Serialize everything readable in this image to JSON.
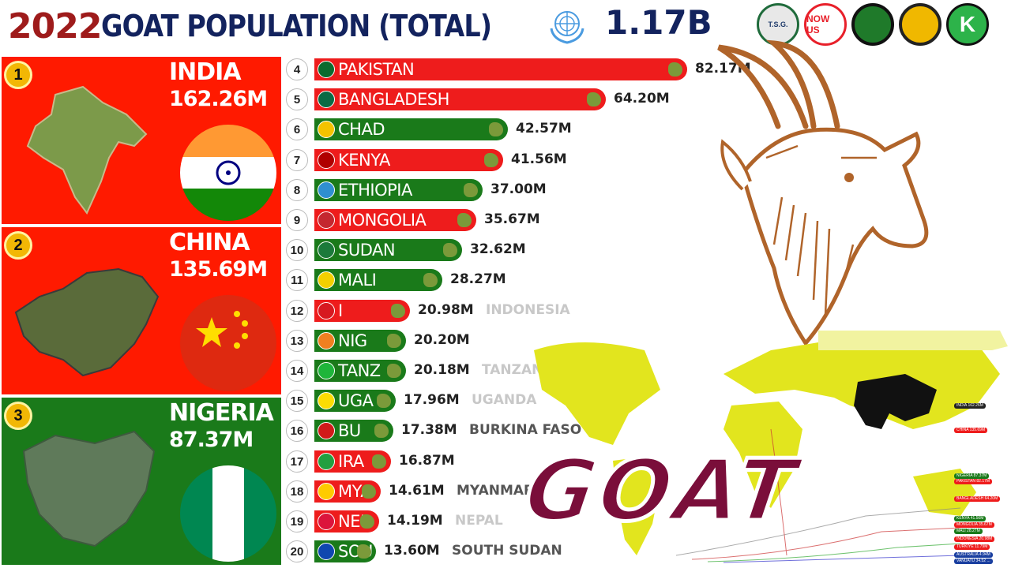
{
  "header": {
    "year": "2022",
    "title": "GOAT POPULATION (TOTAL)",
    "total": "1.17B"
  },
  "logos": [
    {
      "icon": "tsg-logo",
      "label": "T.S.G."
    },
    {
      "icon": "now-us-logo",
      "label": "NOW US"
    },
    {
      "icon": "green-swirl-logo",
      "label": ""
    },
    {
      "icon": "seal-logo",
      "label": ""
    },
    {
      "icon": "k-logo",
      "label": "K"
    }
  ],
  "top3": [
    {
      "rank": "1",
      "name": "INDIA",
      "value": "162.26M",
      "bg": "#ff1a00",
      "flag": "india"
    },
    {
      "rank": "2",
      "name": "CHINA",
      "value": "135.69M",
      "bg": "#ff1a00",
      "flag": "china"
    },
    {
      "rank": "3",
      "name": "NIGERIA",
      "value": "87.37M",
      "bg": "#1a7a1a",
      "flag": "nigeria"
    }
  ],
  "chart_data": {
    "type": "bar",
    "title": "GOAT POPULATION (TOTAL)",
    "xlabel": "",
    "ylabel": "",
    "unit": "M",
    "categories": [
      "PAKISTAN",
      "BANGLADESH",
      "CHAD",
      "KENYA",
      "ETHIOPIA",
      "MONGOLIA",
      "SUDAN",
      "MALI",
      "INDONESIA",
      "NIGER",
      "TANZANIA",
      "UGANDA",
      "BURKINA FASO",
      "IRAN",
      "MYANMAR",
      "NEPAL",
      "SOUTH SUDAN"
    ],
    "ranks": [
      "4",
      "5",
      "6",
      "7",
      "8",
      "9",
      "10",
      "11",
      "12",
      "13",
      "14",
      "15",
      "16",
      "17",
      "18",
      "19",
      "20"
    ],
    "inbar_labels": [
      "PAKISTAN",
      "BANGLADESH",
      "CHAD",
      "KENYA",
      "ETHIOPIA",
      "MONGOLIA",
      "SUDAN",
      "MALI",
      "I",
      "NIG",
      "TANZ",
      "UGA",
      "BU",
      "IRA",
      "MYA",
      "NEP",
      "SOU"
    ],
    "outside_labels": [
      "",
      "",
      "",
      "",
      "",
      "",
      "",
      "",
      "INDONESIA",
      "",
      "TANZANIA",
      "UGANDA",
      "BURKINA FASO",
      "",
      "MYANMAR",
      "NEPAL",
      "SOUTH SUDAN"
    ],
    "outside_colors": [
      "",
      "",
      "",
      "",
      "",
      "",
      "",
      "",
      "#c8c8c8",
      "",
      "#c8c8c8",
      "#c8c8c8",
      "#555555",
      "",
      "#555555",
      "#c8c8c8",
      "#555555"
    ],
    "value_labels": [
      "82.17M",
      "64.20M",
      "42.57M",
      "41.56M",
      "37.00M",
      "35.67M",
      "32.62M",
      "28.27M",
      "20.98M",
      "20.20M",
      "20.18M",
      "17.96M",
      "17.38M",
      "16.87M",
      "14.61M",
      "14.19M",
      "13.60M"
    ],
    "values": [
      82.17,
      64.2,
      42.57,
      41.56,
      37.0,
      35.67,
      32.62,
      28.27,
      20.98,
      20.2,
      20.18,
      17.96,
      17.38,
      16.87,
      14.61,
      14.19,
      13.6
    ],
    "colors": [
      "#ee1c1c",
      "#ee1c1c",
      "#1a7a1a",
      "#ee1c1c",
      "#1a7a1a",
      "#ee1c1c",
      "#1a7a1a",
      "#1a7a1a",
      "#ee1c1c",
      "#1a7a1a",
      "#1a7a1a",
      "#1a7a1a",
      "#1a7a1a",
      "#ee1c1c",
      "#ee1c1c",
      "#ee1c1c",
      "#1a7a1a"
    ],
    "flag_colors": [
      "#0b6b2e",
      "#0a6a44",
      "#f4c300",
      "#b00000",
      "#2f8fd0",
      "#c4272f",
      "#1b7a3a",
      "#f4d000",
      "#d71920",
      "#f08020",
      "#1eb53a",
      "#fcdc04",
      "#d11a1a",
      "#239f40",
      "#fecb00",
      "#dc143c",
      "#0f47af"
    ]
  },
  "goat_word": "GOAT",
  "mini_legend": [
    {
      "text": "INDIA 162.26M",
      "color": "#222222"
    },
    {
      "text": "CHINA 135.69M",
      "color": "#ee1c1c"
    },
    {
      "text": "NIGERIA 87.37M",
      "color": "#1a7a1a"
    },
    {
      "text": "PAKISTAN 82.17M",
      "color": "#ee1c1c"
    },
    {
      "text": "BANGLADESH 64.20M",
      "color": "#ee1c1c"
    },
    {
      "text": "KENYA 41.56M",
      "color": "#1a7a1a"
    },
    {
      "text": "MONGOLIA 35.67M",
      "color": "#ee1c1c"
    },
    {
      "text": "MALI 28.27M",
      "color": "#1a7a1a"
    },
    {
      "text": "INDONESIA 20.98M",
      "color": "#ee1c1c"
    },
    {
      "text": "TÜRKIYE 11.79M",
      "color": "#ee1c1c"
    },
    {
      "text": "AUSTRALIA 4.94M",
      "color": "#1a3fa0"
    },
    {
      "text": "VANUATU 34.52 ...",
      "color": "#1a3fa0"
    }
  ]
}
